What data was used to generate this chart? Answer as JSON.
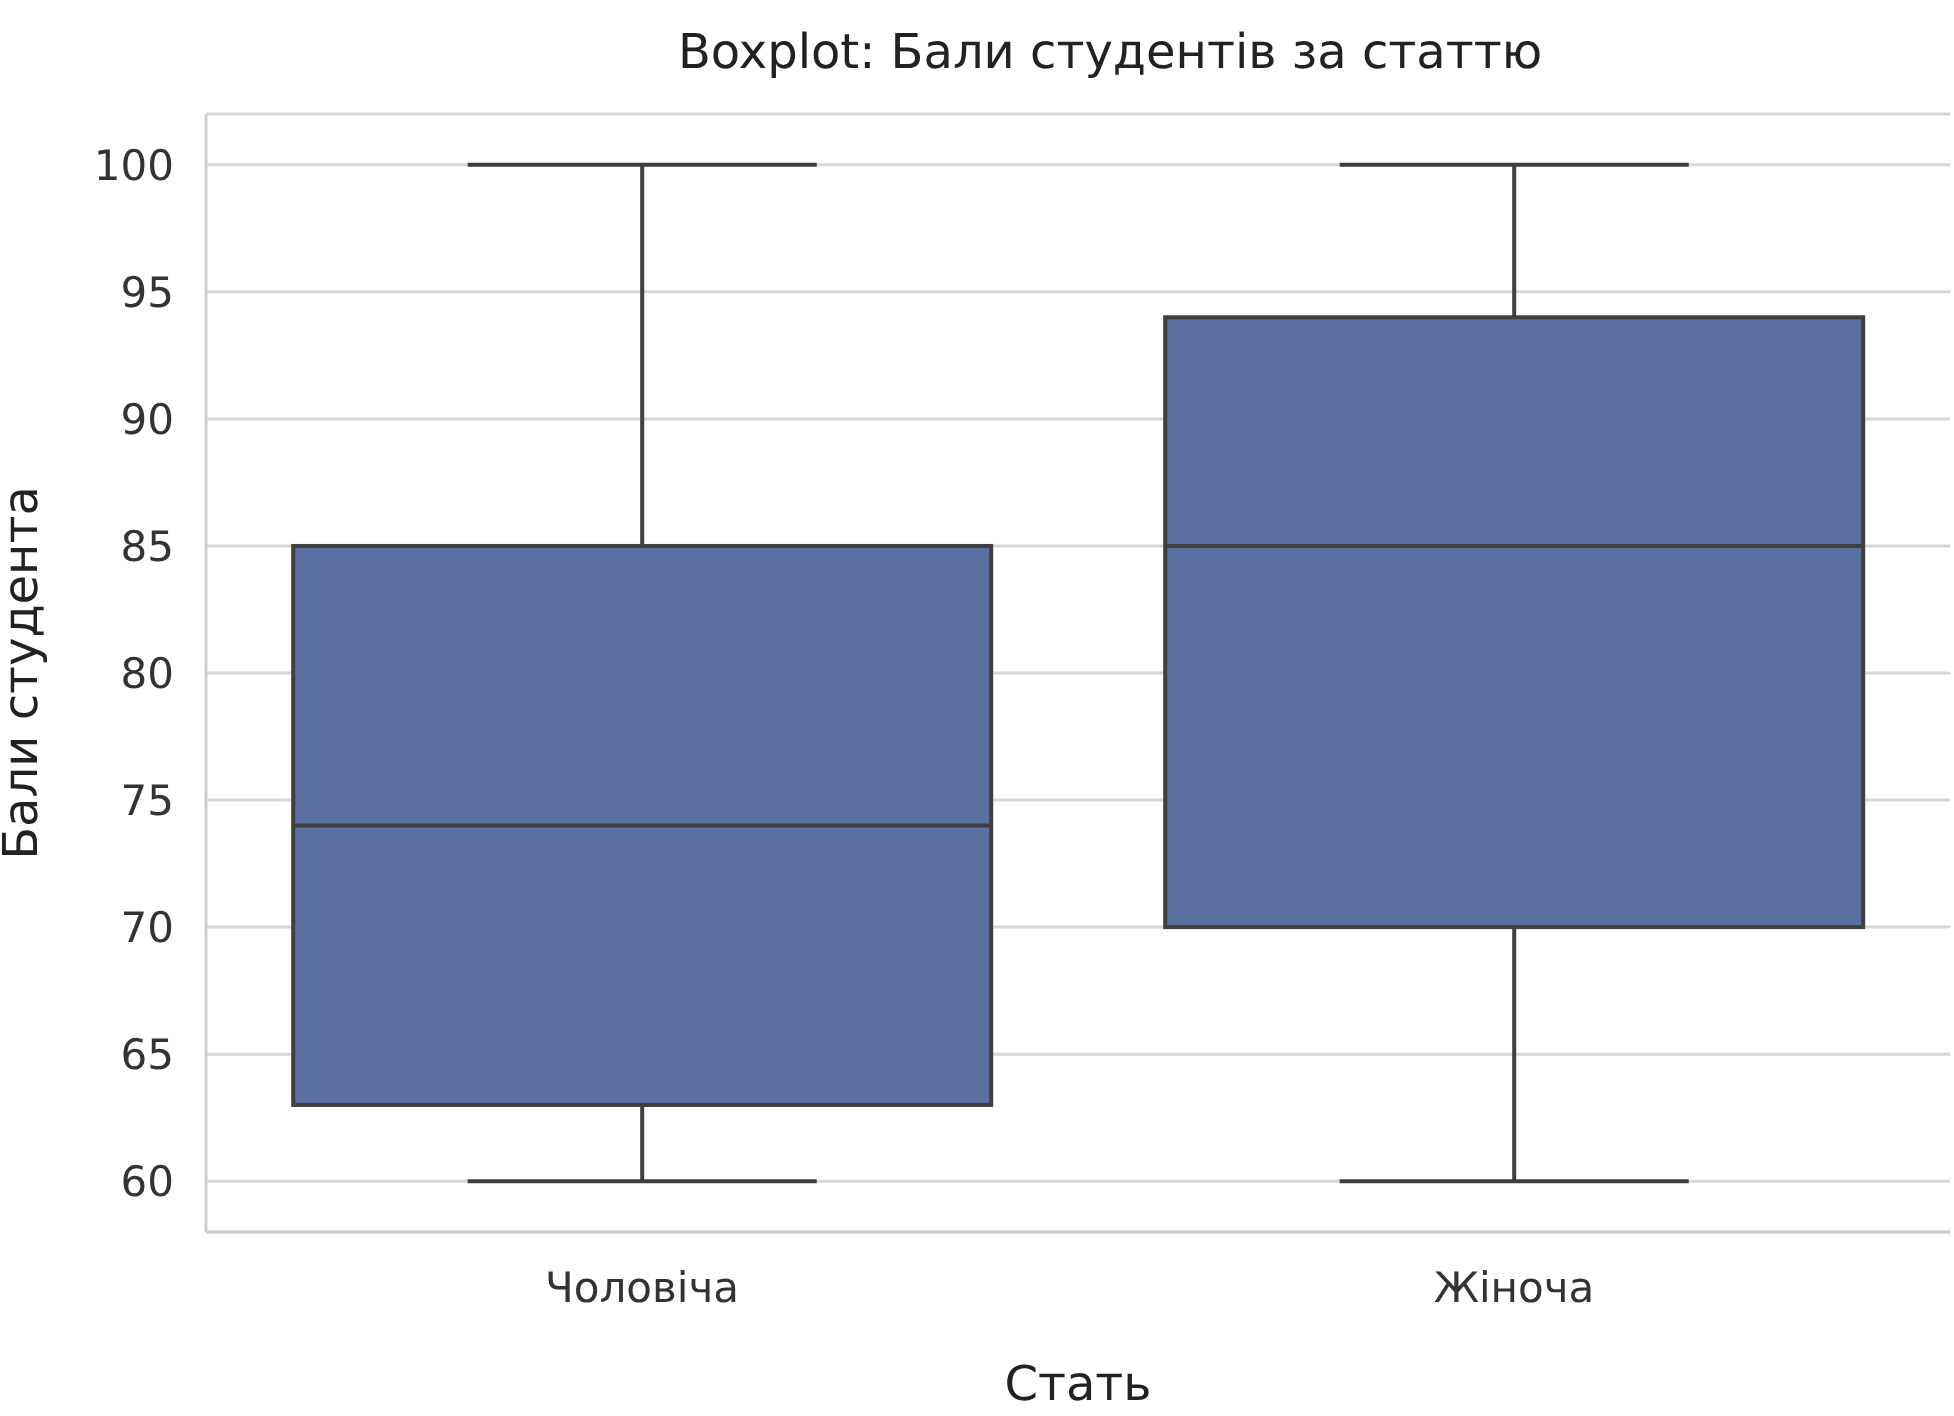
{
  "chart_data": {
    "type": "box",
    "title": "Boxplot: Бали студентів за статтю",
    "xlabel": "Стать",
    "ylabel": "Бали студента",
    "categories": [
      "Чоловіча",
      "Жіноча"
    ],
    "boxes": [
      {
        "low": 60,
        "q1": 63,
        "median": 74,
        "q3": 85,
        "high": 100
      },
      {
        "low": 60,
        "q1": 70,
        "median": 85,
        "q3": 94,
        "high": 100
      }
    ],
    "color": "#5a70a0",
    "ylim": [
      58,
      102
    ],
    "yticks": [
      60,
      65,
      70,
      75,
      80,
      85,
      90,
      95,
      100
    ],
    "grid": "y"
  }
}
